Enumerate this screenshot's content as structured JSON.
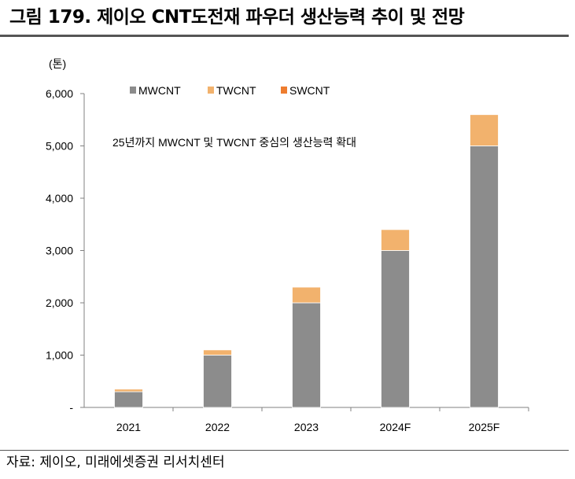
{
  "figure": {
    "title": "그림 179. 제이오 CNT도전재 파우더 생산능력 추이 및 전망",
    "source": "자료: 제이오, 미래에셋증권 리서치센터"
  },
  "chart_data": {
    "type": "bar",
    "stacked": true,
    "unit_label": "(톤)",
    "categories": [
      "2021",
      "2022",
      "2023",
      "2024F",
      "2025F"
    ],
    "series": [
      {
        "name": "MWCNT",
        "color": "#8c8c8c",
        "values": [
          300,
          1000,
          2000,
          3000,
          5000
        ]
      },
      {
        "name": "TWCNT",
        "color": "#f2b26d",
        "values": [
          50,
          100,
          300,
          400,
          600
        ]
      },
      {
        "name": "SWCNT",
        "color": "#ee7d2f",
        "values": [
          0,
          0,
          0,
          0,
          10
        ]
      }
    ],
    "ylim": [
      0,
      6000
    ],
    "yticks": [
      0,
      1000,
      2000,
      3000,
      4000,
      5000,
      6000
    ],
    "ytick_labels": [
      "-",
      "1,000",
      "2,000",
      "3,000",
      "4,000",
      "5,000",
      "6,000"
    ],
    "annotation": "25년까지 MWCNT 및 TWCNT 중심의 생산능력 확대",
    "legend_position": "top-left",
    "grid": false
  }
}
